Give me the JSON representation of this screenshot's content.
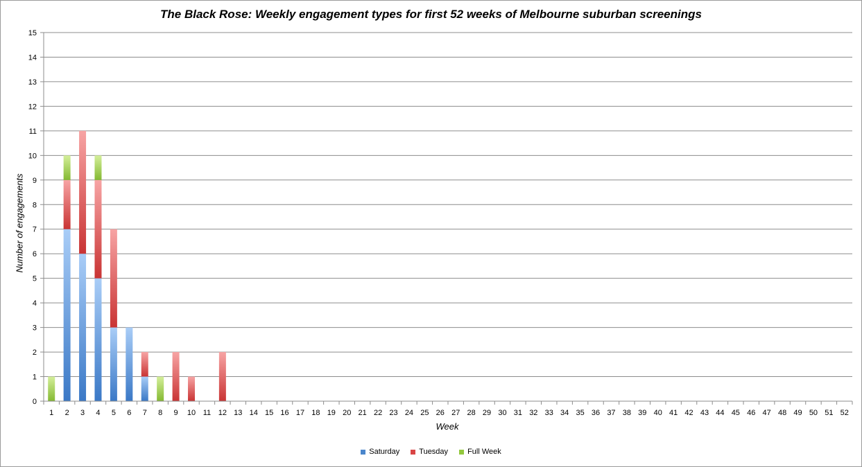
{
  "chart_data": {
    "type": "bar",
    "stacked": true,
    "title": "The Black Rose: Weekly engagement types for first 52 weeks of Melbourne suburban screenings",
    "xlabel": "Week",
    "ylabel": "Number of engagements",
    "ylim": [
      0,
      15
    ],
    "yticks": [
      0,
      1,
      2,
      3,
      4,
      5,
      6,
      7,
      8,
      9,
      10,
      11,
      12,
      13,
      14,
      15
    ],
    "grid": true,
    "legend_position": "bottom",
    "categories": [
      "1",
      "2",
      "3",
      "4",
      "5",
      "6",
      "7",
      "8",
      "9",
      "10",
      "11",
      "12",
      "13",
      "14",
      "15",
      "16",
      "17",
      "18",
      "19",
      "20",
      "21",
      "22",
      "23",
      "24",
      "25",
      "26",
      "27",
      "28",
      "29",
      "30",
      "31",
      "32",
      "33",
      "34",
      "35",
      "36",
      "37",
      "38",
      "39",
      "40",
      "41",
      "42",
      "43",
      "44",
      "45",
      "46",
      "47",
      "48",
      "49",
      "50",
      "51",
      "52"
    ],
    "series": [
      {
        "name": "Saturday",
        "color": "#4a86cc",
        "values": [
          0,
          7,
          6,
          5,
          3,
          3,
          1,
          0,
          0,
          0,
          0,
          0,
          0,
          0,
          0,
          0,
          0,
          0,
          0,
          0,
          0,
          0,
          0,
          0,
          0,
          0,
          0,
          0,
          0,
          0,
          0,
          0,
          0,
          0,
          0,
          0,
          0,
          0,
          0,
          0,
          0,
          0,
          0,
          0,
          0,
          0,
          0,
          0,
          0,
          0,
          0,
          0
        ]
      },
      {
        "name": "Tuesday",
        "color": "#d94545",
        "values": [
          0,
          2,
          5,
          4,
          4,
          0,
          1,
          0,
          2,
          1,
          0,
          2,
          0,
          0,
          0,
          0,
          0,
          0,
          0,
          0,
          0,
          0,
          0,
          0,
          0,
          0,
          0,
          0,
          0,
          0,
          0,
          0,
          0,
          0,
          0,
          0,
          0,
          0,
          0,
          0,
          0,
          0,
          0,
          0,
          0,
          0,
          0,
          0,
          0,
          0,
          0,
          0
        ]
      },
      {
        "name": "Full Week",
        "color": "#93c83e",
        "values": [
          1,
          1,
          0,
          1,
          0,
          0,
          0,
          1,
          0,
          0,
          0,
          0,
          0,
          0,
          0,
          0,
          0,
          0,
          0,
          0,
          0,
          0,
          0,
          0,
          0,
          0,
          0,
          0,
          0,
          0,
          0,
          0,
          0,
          0,
          0,
          0,
          0,
          0,
          0,
          0,
          0,
          0,
          0,
          0,
          0,
          0,
          0,
          0,
          0,
          0,
          0,
          0
        ]
      }
    ]
  }
}
